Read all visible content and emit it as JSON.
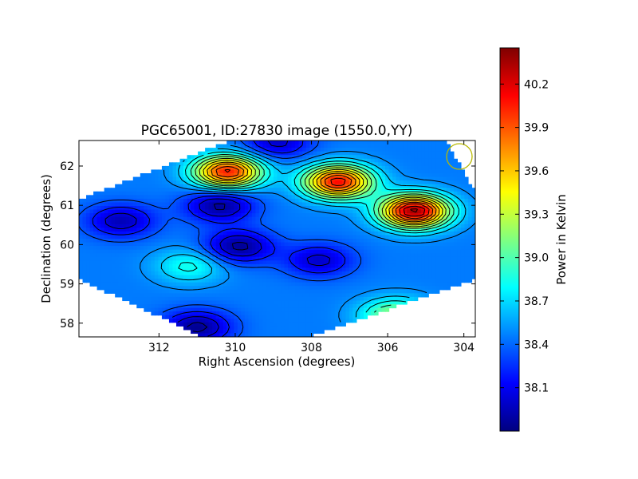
{
  "chart_data": {
    "type": "heatmap",
    "title": "PGC65001, ID:27830 image (1550.0,YY)",
    "xlabel": "Right Ascension (degrees)",
    "ylabel": "Declination (degrees)",
    "x_ticks": [
      312,
      310,
      308,
      306,
      304
    ],
    "y_ticks": [
      58,
      59,
      60,
      61,
      62
    ],
    "xlim": [
      314.1,
      303.7
    ],
    "ylim": [
      57.65,
      62.65
    ],
    "x_reversed": true,
    "colorbar": {
      "label": "Power in Kelvin",
      "ticks": [
        "38.1",
        "38.4",
        "38.7",
        "39.0",
        "39.3",
        "39.6",
        "39.9",
        "40.2"
      ],
      "range": [
        37.8,
        40.45
      ],
      "colormap": "jet"
    },
    "features": [
      {
        "ra": 310.2,
        "dec": 61.85,
        "value": 40.05,
        "kind": "peak"
      },
      {
        "ra": 305.3,
        "dec": 60.85,
        "value": 40.35,
        "kind": "peak"
      },
      {
        "ra": 307.3,
        "dec": 61.6,
        "value": 40.1,
        "kind": "peak"
      },
      {
        "ra": 310.4,
        "dec": 61.0,
        "value": 37.85,
        "kind": "minimum"
      },
      {
        "ra": 309.9,
        "dec": 59.95,
        "value": 37.85,
        "kind": "minimum"
      },
      {
        "ra": 313.0,
        "dec": 60.6,
        "value": 37.95,
        "kind": "minimum"
      },
      {
        "ra": 308.9,
        "dec": 62.6,
        "value": 38.0,
        "kind": "minimum"
      },
      {
        "ra": 311.2,
        "dec": 59.45,
        "value": 38.85,
        "kind": "local-peak"
      },
      {
        "ra": 307.8,
        "dec": 59.6,
        "value": 38.0,
        "kind": "minimum"
      },
      {
        "ra": 305.8,
        "dec": 58.2,
        "value": 39.2,
        "kind": "local-peak"
      },
      {
        "ra": 311.0,
        "dec": 57.9,
        "value": 37.85,
        "kind": "minimum"
      }
    ],
    "beam_circle": {
      "ra": 304.05,
      "dec": 62.25
    }
  },
  "colors": {
    "beam": "#b8b800",
    "contour": "#000000"
  }
}
